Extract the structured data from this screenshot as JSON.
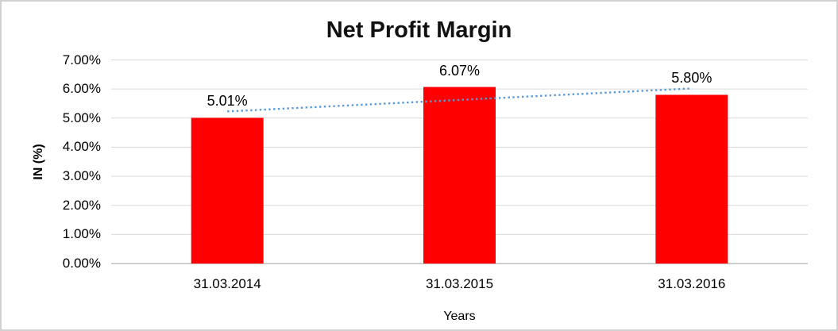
{
  "chart_data": {
    "type": "bar",
    "title": "Net Profit Margin",
    "categories": [
      "31.03.2014",
      "31.03.2015",
      "31.03.2016"
    ],
    "values": [
      5.01,
      6.07,
      5.8
    ],
    "data_labels": [
      "5.01%",
      "6.07%",
      "5.80%"
    ],
    "xlabel": "Years",
    "ylabel": "IN (%)",
    "ylim": [
      0,
      7
    ],
    "ytick_step": 1,
    "ytick_labels": [
      "0.00%",
      "1.00%",
      "2.00%",
      "3.00%",
      "4.00%",
      "5.00%",
      "6.00%",
      "7.00%"
    ],
    "grid": true,
    "legend": "none",
    "bar_color": "#FF0000",
    "gridline_color": "#D9D9D9",
    "axis_line_color": "#BFBFBF",
    "text_color": "#000000",
    "border_color": "#D1D1D1",
    "trendline": {
      "type": "linear",
      "style": "dotted",
      "color": "#5B9BD5",
      "values": [
        5.23,
        5.63,
        6.02
      ]
    }
  }
}
